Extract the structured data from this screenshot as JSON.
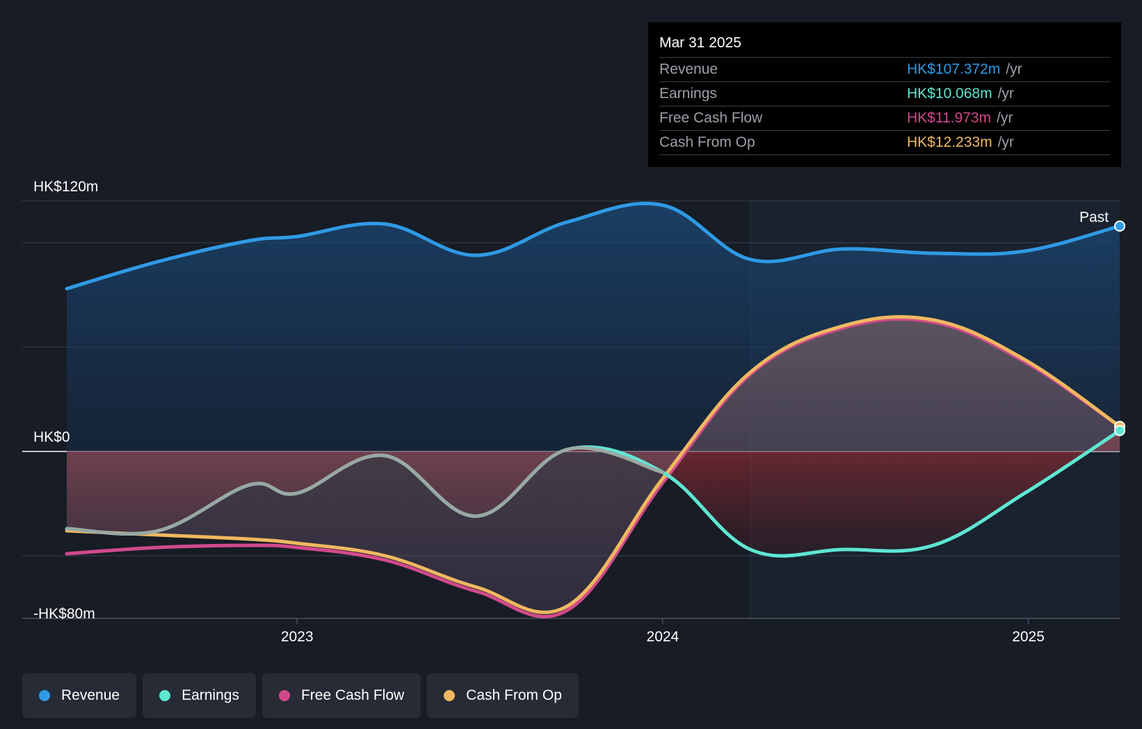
{
  "tooltip": {
    "date": "Mar 31 2025",
    "rows": [
      {
        "label": "Revenue",
        "value": "HK$107.372m",
        "unit": "/yr",
        "color": "#2f9ae5"
      },
      {
        "label": "Earnings",
        "value": "HK$10.068m",
        "unit": "/yr",
        "color": "#5ee6d2"
      },
      {
        "label": "Free Cash Flow",
        "value": "HK$11.973m",
        "unit": "/yr",
        "color": "#d14a8b"
      },
      {
        "label": "Cash From Op",
        "value": "HK$12.233m",
        "unit": "/yr",
        "color": "#f0b860"
      }
    ]
  },
  "legend": [
    {
      "label": "Revenue",
      "color": "#2f9ae5"
    },
    {
      "label": "Earnings",
      "color": "#5ee6d2"
    },
    {
      "label": "Free Cash Flow",
      "color": "#d14a8b"
    },
    {
      "label": "Cash From Op",
      "color": "#f0b860"
    }
  ],
  "chart_data": {
    "type": "area",
    "title": "",
    "ylim": [
      -80,
      120
    ],
    "xlim": [
      2022.37,
      2025.25
    ],
    "past_start": 2024.24,
    "past_label": "Past",
    "y_ticks": [
      {
        "value": 120,
        "label": "HK$120m"
      },
      {
        "value": 0,
        "label": "HK$0"
      },
      {
        "value": -80,
        "label": "-HK$80m"
      }
    ],
    "gridlines": [
      120,
      100,
      50,
      0,
      -50
    ],
    "x_ticks": [
      {
        "value": 2023.0,
        "label": "2023"
      },
      {
        "value": 2024.0,
        "label": "2024"
      },
      {
        "value": 2025.0,
        "label": "2025"
      }
    ],
    "series": [
      {
        "name": "Revenue",
        "color": "#2f9ae5",
        "points": [
          [
            2022.37,
            78
          ],
          [
            2022.62,
            91
          ],
          [
            2022.87,
            101
          ],
          [
            2023.0,
            103
          ],
          [
            2023.24,
            109
          ],
          [
            2023.49,
            94
          ],
          [
            2023.74,
            110
          ],
          [
            2024.0,
            118
          ],
          [
            2024.24,
            92
          ],
          [
            2024.49,
            97
          ],
          [
            2024.74,
            95
          ],
          [
            2024.99,
            96
          ],
          [
            2025.25,
            108
          ]
        ]
      },
      {
        "name": "Earnings",
        "color": "#5ee6d2",
        "points": [
          [
            2022.37,
            -37
          ],
          [
            2022.62,
            -38
          ],
          [
            2022.87,
            -16
          ],
          [
            2023.0,
            -20
          ],
          [
            2023.24,
            -2
          ],
          [
            2023.49,
            -31
          ],
          [
            2023.74,
            1
          ],
          [
            2024.0,
            -10
          ],
          [
            2024.24,
            -47
          ],
          [
            2024.49,
            -47
          ],
          [
            2024.74,
            -45
          ],
          [
            2024.99,
            -20
          ],
          [
            2025.25,
            10
          ]
        ]
      },
      {
        "name": "Free Cash Flow",
        "color": "#d14a8b",
        "points": [
          [
            2022.37,
            -49
          ],
          [
            2022.62,
            -46
          ],
          [
            2022.87,
            -45
          ],
          [
            2023.0,
            -46
          ],
          [
            2023.24,
            -52
          ],
          [
            2023.49,
            -67
          ],
          [
            2023.74,
            -76
          ],
          [
            2024.0,
            -15
          ],
          [
            2024.24,
            37
          ],
          [
            2024.49,
            59
          ],
          [
            2024.74,
            62
          ],
          [
            2024.99,
            43
          ],
          [
            2025.25,
            12
          ]
        ]
      },
      {
        "name": "Cash From Op",
        "color": "#f0b860",
        "points": [
          [
            2022.37,
            -38
          ],
          [
            2022.62,
            -40
          ],
          [
            2022.87,
            -42
          ],
          [
            2023.0,
            -44
          ],
          [
            2023.24,
            -50
          ],
          [
            2023.49,
            -65
          ],
          [
            2023.74,
            -74
          ],
          [
            2024.0,
            -13
          ],
          [
            2024.24,
            38
          ],
          [
            2024.49,
            60
          ],
          [
            2024.74,
            63
          ],
          [
            2024.99,
            44
          ],
          [
            2025.25,
            12
          ]
        ]
      }
    ]
  }
}
